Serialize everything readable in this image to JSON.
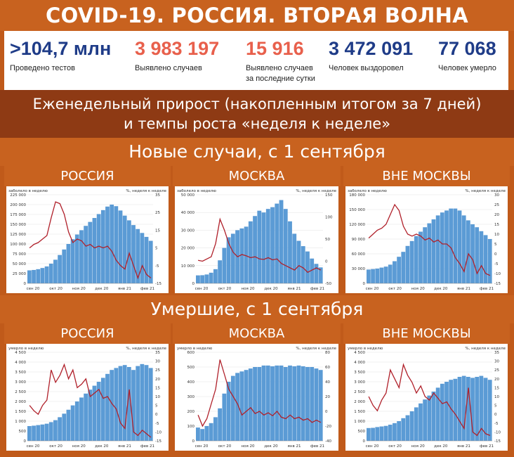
{
  "title": "COVID-19. РОССИЯ. ВТОРАЯ ВОЛНА",
  "stats": [
    {
      "value": ">104,7 млн",
      "label": "Проведено тестов",
      "color": "#1f3c88"
    },
    {
      "value": "3 983 197",
      "label": "Выявлено случаев",
      "color": "#e8604c"
    },
    {
      "value": "15 916",
      "label": "Выявлено случаев за последние сутки",
      "color": "#e8604c"
    },
    {
      "value": "3 472 091",
      "label": "Человек выздоровел",
      "color": "#1f3c88"
    },
    {
      "value": "77 068",
      "label": "Человек умерло",
      "color": "#1f3c88"
    }
  ],
  "subtitle_line1": "Еженедельный прирост (накопленным итогом за 7 дней)",
  "subtitle_line2": "и темпы роста «неделя к неделе»",
  "section_cases": "Новые случаи, с 1 сентября",
  "section_deaths": "Умершие, с 1 сентября",
  "colors": {
    "bar": "#5b9bd5",
    "line": "#b0202a",
    "accent": "#c8621f",
    "dark": "#8e3a14"
  },
  "chart_data": [
    {
      "type": "bar",
      "panel": "РОССИЯ",
      "left_label": "заболело в неделю",
      "right_label": "%, неделя к неделе",
      "x_ticks": [
        "сен 20",
        "окт 20",
        "ноя 20",
        "дек 20",
        "янв 21",
        "фев 21"
      ],
      "ylim": [
        0,
        225000
      ],
      "yticks": [
        "0",
        "25 000",
        "50 000",
        "75 000",
        "100 000",
        "125 000",
        "150 000",
        "175 000",
        "200 000",
        "225 000"
      ],
      "y2lim": [
        -15,
        35
      ],
      "y2ticks": [
        "-15",
        "-5",
        "5",
        "15",
        "25",
        "35"
      ],
      "series": [
        {
          "values": [
            33000,
            34000,
            36000,
            39000,
            43000,
            50000,
            60000,
            72000,
            86000,
            100000,
            112000,
            124000,
            135000,
            146000,
            156000,
            166000,
            176000,
            186000,
            195000,
            200000,
            196000,
            185000,
            172000,
            160000,
            148000,
            138000,
            128000,
            118000,
            108000
          ]
        },
        {
          "values": [
            5,
            7,
            8,
            10,
            12,
            22,
            31,
            30,
            24,
            14,
            8,
            10,
            9,
            6,
            7,
            5,
            6,
            5,
            6,
            3,
            -2,
            -5,
            -7,
            2,
            -5,
            -12,
            -5,
            -10,
            -12
          ]
        }
      ]
    },
    {
      "type": "bar",
      "panel": "МОСКВА",
      "left_label": "заболело в неделю",
      "right_label": "%, неделя к неделе",
      "x_ticks": [
        "сен 20",
        "окт 20",
        "ноя 20",
        "дек 20",
        "янв 21",
        "фев 21"
      ],
      "ylim": [
        0,
        50000
      ],
      "yticks": [
        "0",
        "10 000",
        "20 000",
        "30 000",
        "40 000",
        "50 000"
      ],
      "y2lim": [
        -50,
        150
      ],
      "y2ticks": [
        "-50",
        "0",
        "50",
        "100",
        "150"
      ],
      "series": [
        {
          "values": [
            4500,
            4600,
            5000,
            6000,
            8000,
            13000,
            20000,
            26000,
            28000,
            30000,
            31000,
            32000,
            35000,
            38000,
            41000,
            40000,
            42000,
            43000,
            45000,
            47000,
            42000,
            35000,
            28000,
            24000,
            21000,
            18000,
            14000,
            11000,
            9000
          ]
        },
        {
          "values": [
            2,
            0,
            5,
            10,
            40,
            95,
            70,
            40,
            20,
            10,
            15,
            12,
            8,
            10,
            5,
            4,
            8,
            3,
            5,
            -5,
            -10,
            -15,
            -20,
            -10,
            -15,
            -25,
            -20,
            -15,
            -20
          ]
        }
      ]
    },
    {
      "type": "bar",
      "panel": "ВНЕ МОСКВЫ",
      "left_label": "заболело в неделю",
      "right_label": "%, неделя к неделе",
      "x_ticks": [
        "сен 20",
        "окт 20",
        "ноя 20",
        "дек 20",
        "янв 21",
        "фев 21"
      ],
      "ylim": [
        0,
        180000
      ],
      "yticks": [
        "0",
        "30 000",
        "60 000",
        "90 000",
        "120 000",
        "150 000",
        "180 000"
      ],
      "y2lim": [
        -15,
        30
      ],
      "y2ticks": [
        "-15",
        "-10",
        "-5",
        "0",
        "5",
        "10",
        "15",
        "20",
        "25",
        "30"
      ],
      "series": [
        {
          "values": [
            28000,
            29000,
            30000,
            32000,
            34000,
            38000,
            45000,
            54000,
            64000,
            76000,
            86000,
            96000,
            105000,
            114000,
            122000,
            130000,
            138000,
            144000,
            148000,
            152000,
            152000,
            148000,
            138000,
            128000,
            120000,
            114000,
            106000,
            98000,
            90000
          ]
        },
        {
          "values": [
            8,
            10,
            12,
            13,
            15,
            20,
            25,
            22,
            14,
            10,
            9,
            10,
            9,
            7,
            8,
            6,
            7,
            5,
            5,
            3,
            -2,
            -5,
            -9,
            0,
            -3,
            -10,
            -6,
            -10,
            -11
          ]
        }
      ]
    },
    {
      "type": "bar",
      "panel": "РОССИЯ",
      "left_label": "умерло в неделю",
      "right_label": "%, неделя к неделе",
      "x_ticks": [
        "сен 20",
        "окт 20",
        "ноя 20",
        "дек 20",
        "янв 21",
        "фев 21"
      ],
      "ylim": [
        0,
        4500
      ],
      "yticks": [
        "0",
        "500",
        "1 000",
        "1 500",
        "2 000",
        "2 500",
        "3 000",
        "3 500",
        "4 000",
        "4 500"
      ],
      "y2lim": [
        -15,
        35
      ],
      "y2ticks": [
        "-15",
        "-10",
        "-5",
        "0",
        "5",
        "10",
        "15",
        "20",
        "25",
        "30",
        "35"
      ],
      "series": [
        {
          "values": [
            750,
            770,
            800,
            830,
            870,
            950,
            1050,
            1200,
            1380,
            1580,
            1800,
            2000,
            2200,
            2400,
            2600,
            2800,
            3000,
            3200,
            3400,
            3600,
            3700,
            3800,
            3850,
            3750,
            3600,
            3800,
            3900,
            3850,
            3700
          ]
        },
        {
          "values": [
            5,
            2,
            0,
            5,
            8,
            25,
            18,
            22,
            28,
            20,
            25,
            15,
            17,
            20,
            10,
            12,
            14,
            9,
            10,
            6,
            3,
            -5,
            -8,
            14,
            -10,
            -12,
            -9,
            -11,
            -13
          ]
        }
      ]
    },
    {
      "type": "bar",
      "panel": "МОСКВА",
      "left_label": "умерло в неделю",
      "right_label": "%, неделя к неделе",
      "x_ticks": [
        "сен 20",
        "окт 20",
        "ноя 20",
        "дек 20",
        "янв 21",
        "фев 21"
      ],
      "ylim": [
        0,
        600
      ],
      "yticks": [
        "0",
        "100",
        "200",
        "300",
        "400",
        "500",
        "600"
      ],
      "y2lim": [
        -40,
        80
      ],
      "y2ticks": [
        "-40",
        "-20",
        "0",
        "20",
        "40",
        "60",
        "80"
      ],
      "series": [
        {
          "values": [
            90,
            80,
            100,
            120,
            160,
            220,
            320,
            400,
            440,
            460,
            470,
            480,
            490,
            500,
            500,
            510,
            510,
            505,
            510,
            510,
            500,
            510,
            505,
            510,
            505,
            500,
            500,
            490,
            480
          ]
        },
        {
          "values": [
            -5,
            -20,
            -10,
            10,
            30,
            70,
            50,
            30,
            20,
            10,
            -5,
            0,
            5,
            -3,
            0,
            -5,
            -2,
            -6,
            0,
            -8,
            -10,
            -5,
            -10,
            -8,
            -12,
            -10,
            -15,
            -12,
            -15
          ]
        }
      ]
    },
    {
      "type": "bar",
      "panel": "ВНЕ МОСКВЫ",
      "left_label": "умерло в неделю",
      "right_label": "%, неделя к неделе",
      "x_ticks": [
        "сен 20",
        "окт 20",
        "ноя 20",
        "дек 20",
        "янв 21",
        "фев 21"
      ],
      "ylim": [
        0,
        4500
      ],
      "yticks": [
        "0",
        "500",
        "1 000",
        "1 500",
        "2 000",
        "2 500",
        "3 000",
        "3 500",
        "4 000",
        "4 500"
      ],
      "y2lim": [
        -15,
        35
      ],
      "y2ticks": [
        "-15",
        "-10",
        "-5",
        "0",
        "5",
        "10",
        "15",
        "20",
        "25",
        "30",
        "35"
      ],
      "series": [
        {
          "values": [
            650,
            660,
            700,
            730,
            760,
            820,
            900,
            1000,
            1150,
            1300,
            1500,
            1700,
            1900,
            2100,
            2300,
            2500,
            2700,
            2900,
            3000,
            3100,
            3150,
            3250,
            3300,
            3250,
            3200,
            3250,
            3300,
            3200,
            3100
          ]
        },
        {
          "values": [
            10,
            5,
            2,
            8,
            12,
            25,
            20,
            15,
            28,
            22,
            18,
            12,
            16,
            10,
            8,
            12,
            9,
            6,
            7,
            3,
            0,
            -4,
            -8,
            15,
            -10,
            -12,
            -8,
            -11,
            -12
          ]
        }
      ]
    }
  ]
}
